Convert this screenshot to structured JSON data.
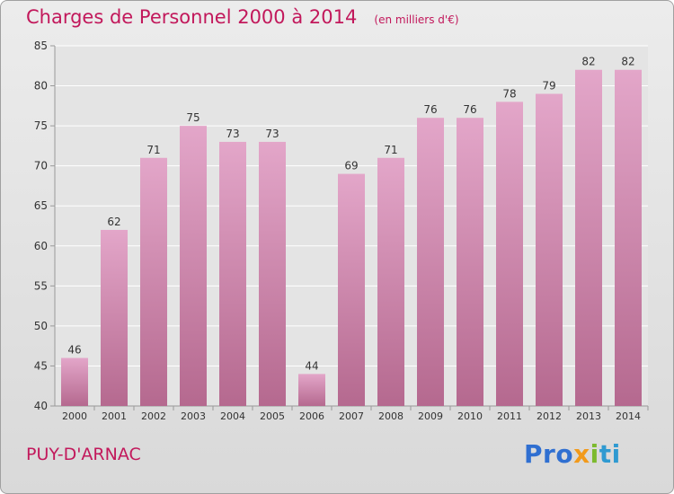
{
  "title": "Charges de Personnel 2000 à 2014",
  "subtitle": "(en milliers d'€)",
  "commune": "PUY-D'ARNAC",
  "logo_text": "Proxiti",
  "chart_data": {
    "type": "bar",
    "title": "Charges de Personnel 2000 à 2014",
    "subtitle": "(en milliers d'€)",
    "categories": [
      "2000",
      "2001",
      "2002",
      "2003",
      "2004",
      "2005",
      "2006",
      "2007",
      "2008",
      "2009",
      "2010",
      "2011",
      "2012",
      "2013",
      "2014"
    ],
    "values": [
      46,
      62,
      71,
      75,
      73,
      73,
      44,
      69,
      71,
      76,
      76,
      78,
      79,
      82,
      82
    ],
    "ylim": [
      40,
      85
    ],
    "yticks": [
      40,
      45,
      50,
      55,
      60,
      65,
      70,
      75,
      80,
      85
    ],
    "grid": "horizontal",
    "bar_color": "#d98cb5"
  }
}
